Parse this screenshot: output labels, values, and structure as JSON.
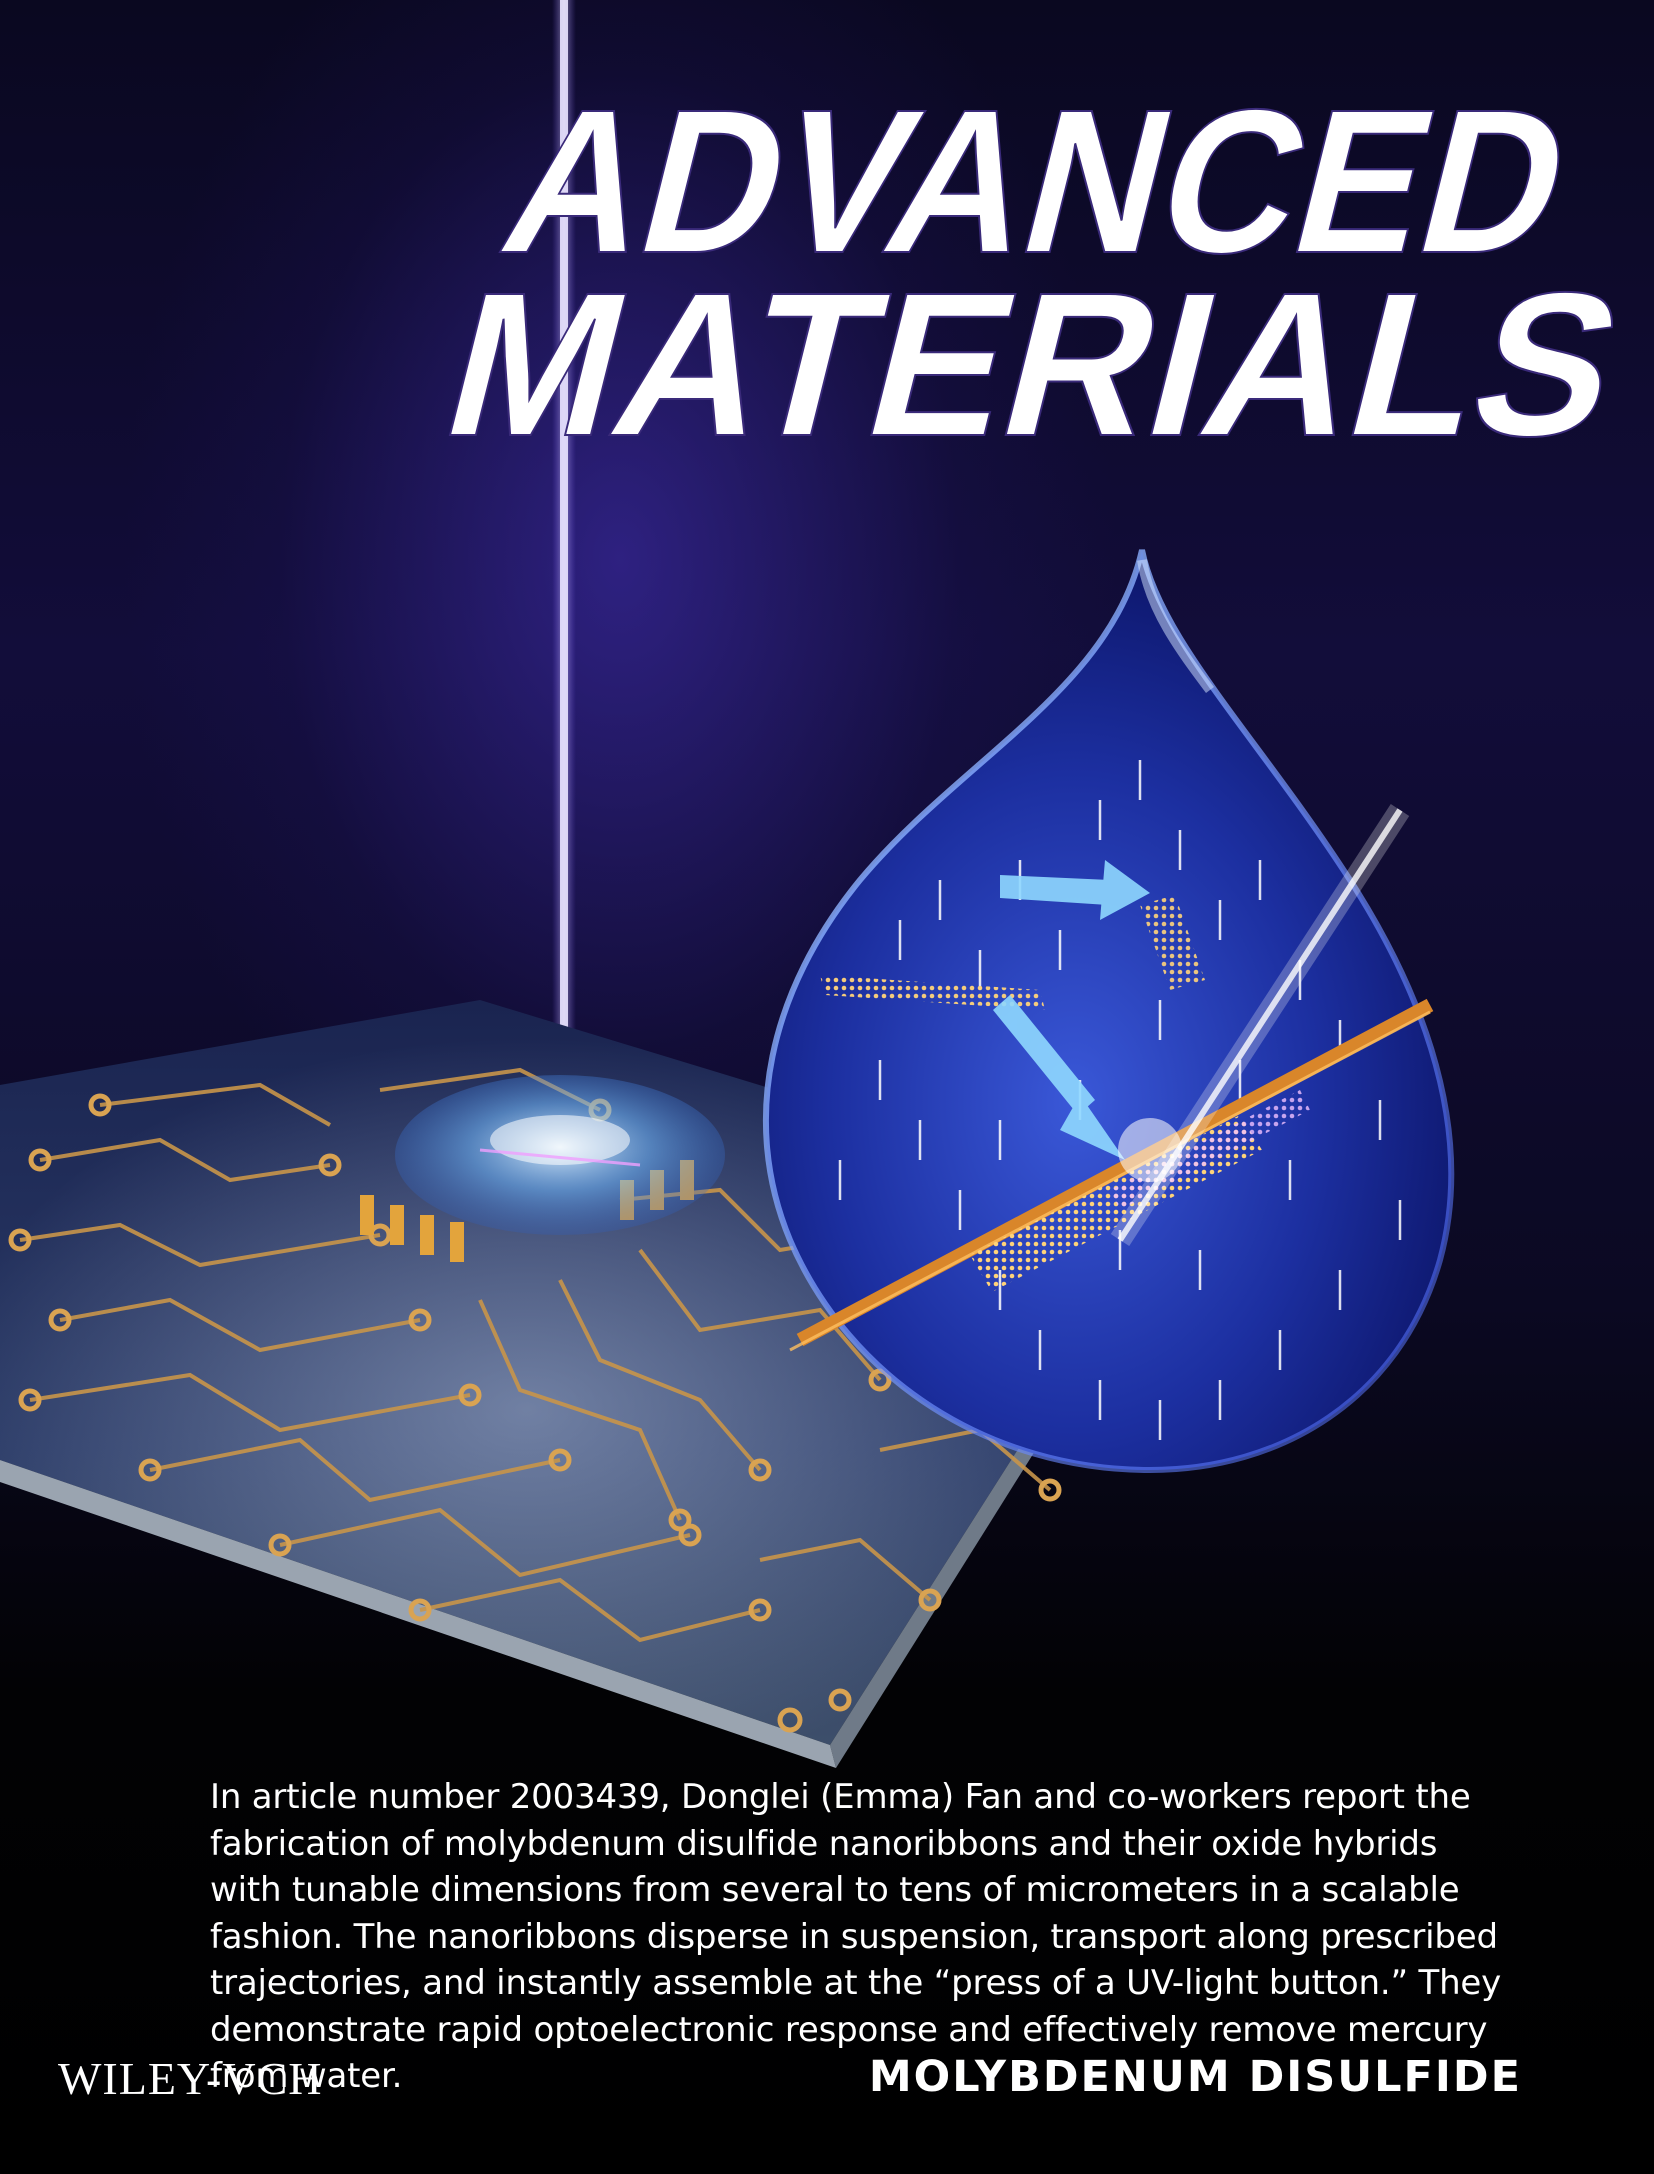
{
  "journal": {
    "title_line1": "ADVANCED",
    "title_line2": "MATERIALS"
  },
  "caption": "In article number 2003439, Donglei (Emma) Fan and co-workers report the fabrication of molybdenum disulfide nanoribbons and their oxide hybrids with tunable dimensions from several to tens of micrometers in a scalable fashion. The nanoribbons disperse in suspension, transport along prescribed trajectories, and instantly assemble at the “press of a UV-light button.” They demonstrate rapid optoelectronic response and effectively remove mercury from water.",
  "publisher": "WILEY-VCH",
  "topic": "MOLYBDENUM DISULFIDE",
  "colors": {
    "background": "#000000",
    "glow": "#4a32be",
    "gold": "#d7a24a",
    "drop": "#1b2a8a",
    "text": "#ffffff"
  }
}
